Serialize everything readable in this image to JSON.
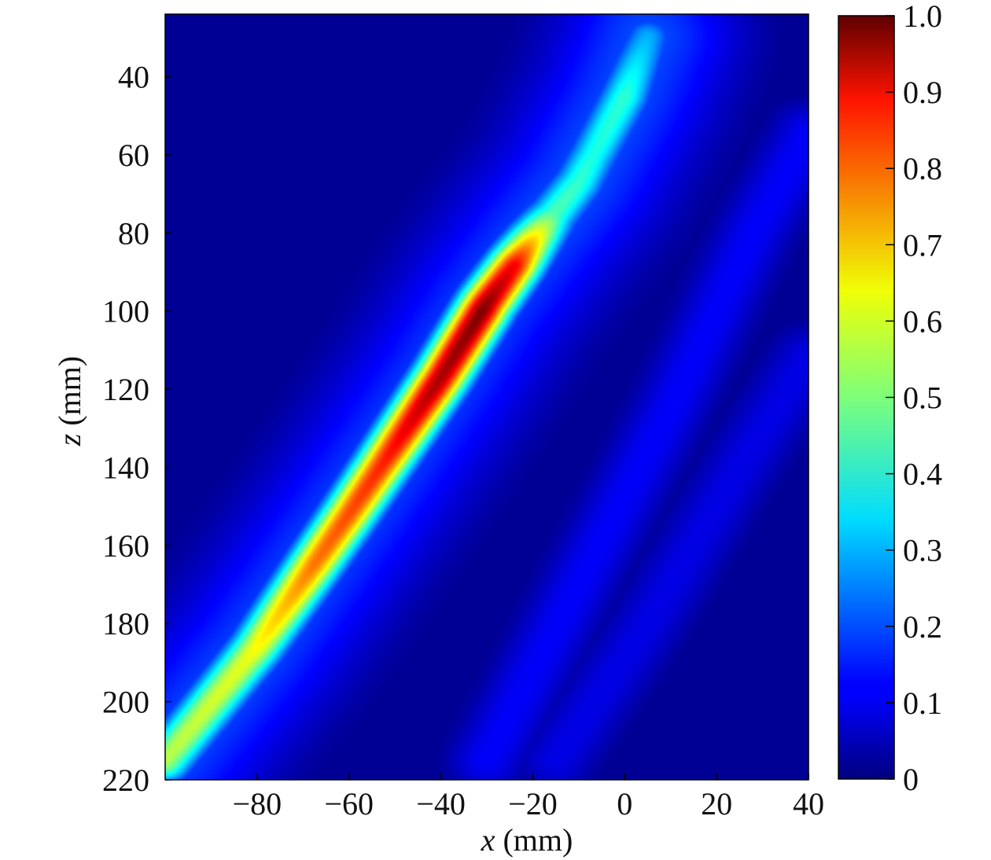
{
  "chart_data": {
    "type": "heatmap",
    "title": "",
    "xlabel": {
      "symbol": "x",
      "unit": " (mm)"
    },
    "ylabel": {
      "symbol": "z",
      "unit": " (mm)"
    },
    "xlim": [
      -100,
      40
    ],
    "ylim": [
      220,
      24
    ],
    "y_inverted": true,
    "x_ticks": [
      {
        "value": -80,
        "label": "−80"
      },
      {
        "value": -60,
        "label": "−60"
      },
      {
        "value": -40,
        "label": "−40"
      },
      {
        "value": -20,
        "label": "−20"
      },
      {
        "value": 0,
        "label": "0"
      },
      {
        "value": 20,
        "label": "20"
      },
      {
        "value": 40,
        "label": "40"
      }
    ],
    "y_ticks": [
      {
        "value": 40,
        "label": "40"
      },
      {
        "value": 60,
        "label": "60"
      },
      {
        "value": 80,
        "label": "80"
      },
      {
        "value": 100,
        "label": "100"
      },
      {
        "value": 120,
        "label": "120"
      },
      {
        "value": 140,
        "label": "140"
      },
      {
        "value": 160,
        "label": "160"
      },
      {
        "value": 180,
        "label": "180"
      },
      {
        "value": 200,
        "label": "200"
      },
      {
        "value": 220,
        "label": "220"
      }
    ],
    "colorbar": {
      "range": [
        0,
        1.0
      ],
      "colormap": "jet",
      "ticks": [
        {
          "value": 1.0,
          "label": "1.0"
        },
        {
          "value": 0.9,
          "label": "0.9"
        },
        {
          "value": 0.8,
          "label": "0.8"
        },
        {
          "value": 0.7,
          "label": "0.7"
        },
        {
          "value": 0.6,
          "label": "0.6"
        },
        {
          "value": 0.5,
          "label": "0.5"
        },
        {
          "value": 0.4,
          "label": "0.4"
        },
        {
          "value": 0.3,
          "label": "0.3"
        },
        {
          "value": 0.2,
          "label": "0.2"
        },
        {
          "value": 0.1,
          "label": "0.1"
        },
        {
          "value": 0,
          "label": "0"
        }
      ]
    },
    "background_level": 0.02,
    "main_ridge": {
      "path": [
        [
          -100,
          215
        ],
        [
          -80,
          186
        ],
        [
          -60,
          152
        ],
        [
          -40,
          117
        ],
        [
          -30,
          98
        ],
        [
          -20,
          82
        ],
        [
          -10,
          67
        ],
        [
          0,
          45
        ],
        [
          5,
          30
        ]
      ],
      "intensity_profile": [
        {
          "z": 215,
          "value": 0.55
        },
        {
          "z": 190,
          "value": 0.6
        },
        {
          "z": 165,
          "value": 0.76
        },
        {
          "z": 140,
          "value": 0.84
        },
        {
          "z": 120,
          "value": 0.95
        },
        {
          "z": 100,
          "value": 1.0
        },
        {
          "z": 88,
          "value": 0.88
        },
        {
          "z": 75,
          "value": 0.45
        },
        {
          "z": 60,
          "value": 0.4
        },
        {
          "z": 45,
          "value": 0.42
        },
        {
          "z": 30,
          "value": 0.3
        }
      ],
      "halo_level": 0.2
    },
    "secondary_streaks": [
      {
        "path": [
          [
            -30,
            215
          ],
          [
            -10,
            170
          ],
          [
            10,
            125
          ],
          [
            28,
            80
          ],
          [
            40,
            55
          ]
        ],
        "value": 0.12
      },
      {
        "path": [
          [
            -15,
            215
          ],
          [
            5,
            180
          ],
          [
            25,
            140
          ],
          [
            40,
            112
          ]
        ],
        "value": 0.1
      }
    ]
  }
}
